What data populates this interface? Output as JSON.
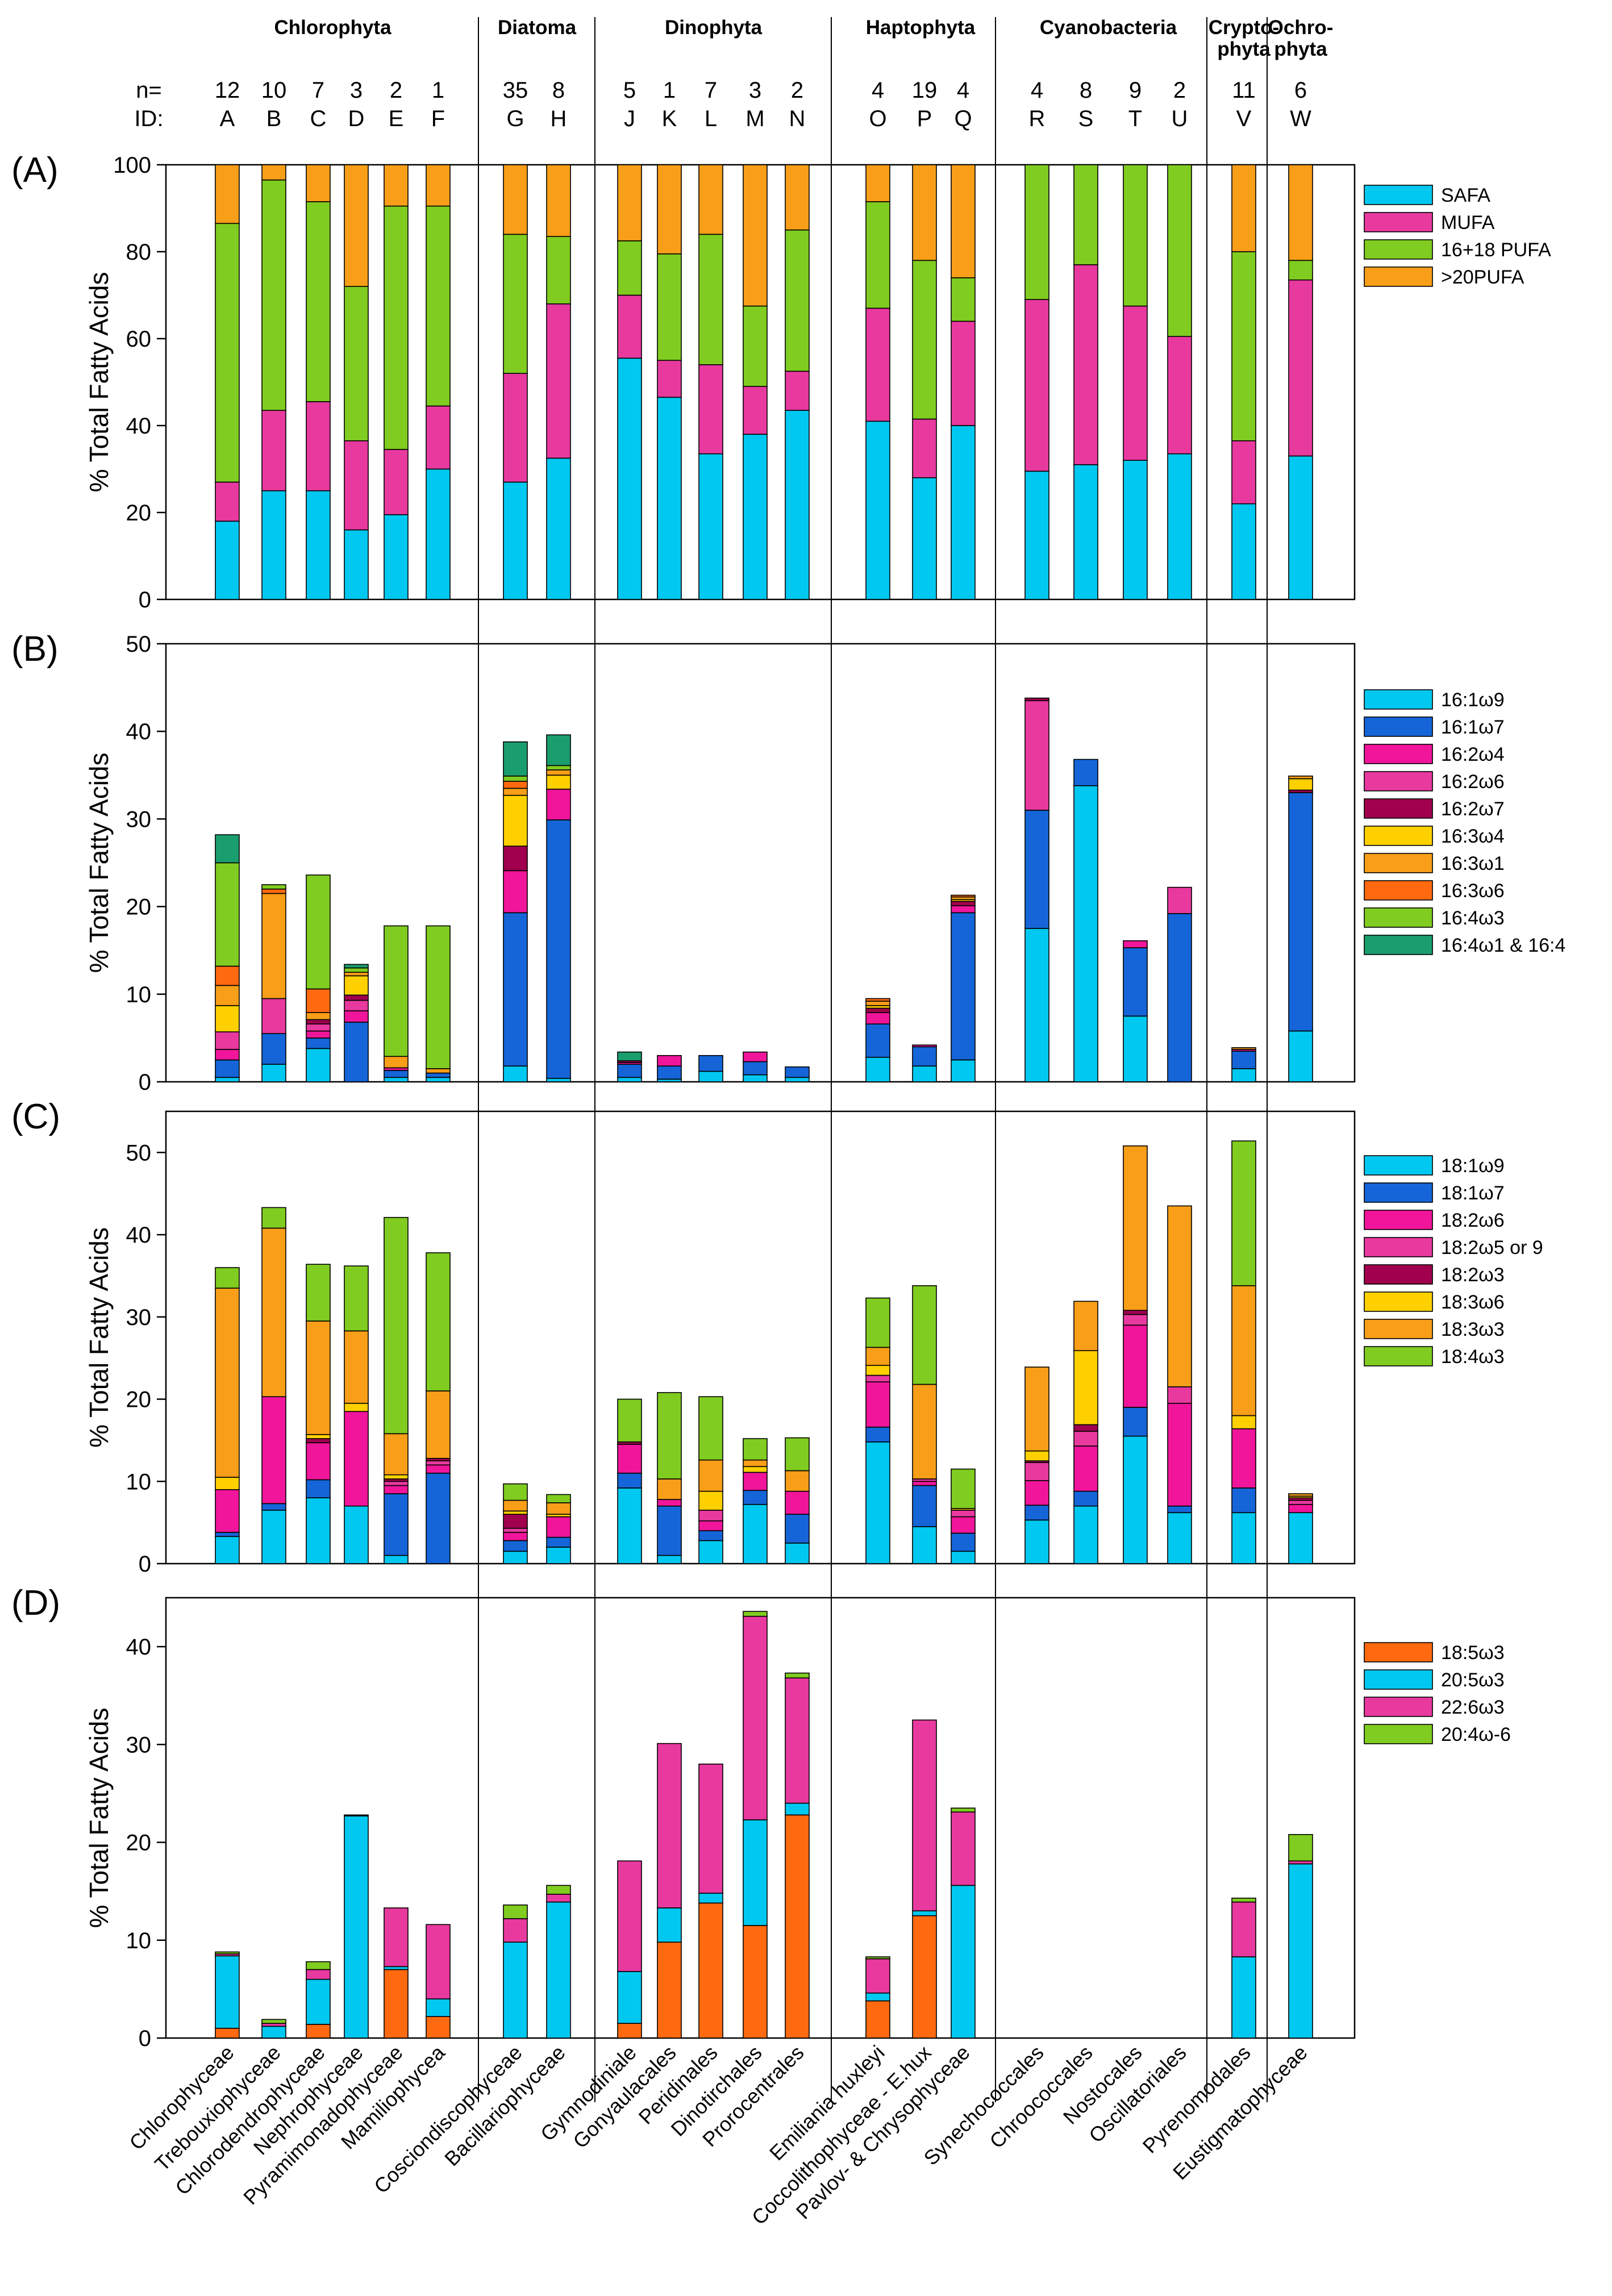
{
  "groups": [
    {
      "name": "Chlorophyta",
      "start": 0,
      "end": 5
    },
    {
      "name": "Diatoma",
      "start": 6,
      "end": 7
    },
    {
      "name": "Dinophyta",
      "start": 8,
      "end": 12
    },
    {
      "name": "Haptophyta",
      "start": 13,
      "end": 15
    },
    {
      "name": "Cyanobacteria",
      "start": 16,
      "end": 19
    },
    {
      "name": "Crypto-\nphyta",
      "start": 20,
      "end": 20
    },
    {
      "name": "Ochro-\nphyta",
      "start": 21,
      "end": 21
    }
  ],
  "n_label": "n=",
  "id_label": "ID:",
  "categories": [
    {
      "n": "12",
      "id": "A",
      "name": "Chlorophyceae"
    },
    {
      "n": "10",
      "id": "B",
      "name": "Trebouxiophyceae"
    },
    {
      "n": "7",
      "id": "C",
      "name": "Chlorodendrophyceae"
    },
    {
      "n": "3",
      "id": "D",
      "name": "Nephrophyceae"
    },
    {
      "n": "2",
      "id": "E",
      "name": "Pyramimonadophyceae"
    },
    {
      "n": "1",
      "id": "F",
      "name": "Mamiliophycea"
    },
    {
      "n": "35",
      "id": "G",
      "name": "Cosciondiscophyceae"
    },
    {
      "n": "8",
      "id": "H",
      "name": "Bacillariophyceae"
    },
    {
      "n": "5",
      "id": "J",
      "name": "Gymnodiniale"
    },
    {
      "n": "1",
      "id": "K",
      "name": "Gonyaulacales"
    },
    {
      "n": "7",
      "id": "L",
      "name": "Peridinales"
    },
    {
      "n": "3",
      "id": "M",
      "name": "Dinotirchales"
    },
    {
      "n": "2",
      "id": "N",
      "name": "Prorocentrales"
    },
    {
      "n": "4",
      "id": "O",
      "name": "Emiliania huxleyi"
    },
    {
      "n": "19",
      "id": "P",
      "name": "Coccolithophyceae - E.hux"
    },
    {
      "n": "4",
      "id": "Q",
      "name": "Pavlov- & Chrysophyceae"
    },
    {
      "n": "4",
      "id": "R",
      "name": "Synechococcales"
    },
    {
      "n": "8",
      "id": "S",
      "name": "Chroococcales"
    },
    {
      "n": "9",
      "id": "T",
      "name": "Nostocales"
    },
    {
      "n": "2",
      "id": "U",
      "name": "Oscillatoriales"
    },
    {
      "n": "11",
      "id": "V",
      "name": "Pyrenomodales"
    },
    {
      "n": "6",
      "id": "W",
      "name": "Eustigmatophyceae"
    }
  ],
  "chart_data": [
    {
      "type": "bar",
      "panel": "(A)",
      "ylabel": "% Total Fatty Acids",
      "ylim": [
        0,
        100
      ],
      "yticks": [
        0,
        20,
        40,
        60,
        80,
        100
      ],
      "series": [
        {
          "name": "SAFA",
          "color": "#00c8f0",
          "values": [
            18,
            25,
            25,
            16,
            19.5,
            30,
            27,
            32.5,
            55.5,
            46.5,
            33.5,
            38,
            43.5,
            41,
            28,
            40,
            29.5,
            31,
            32,
            33.5,
            22,
            33
          ]
        },
        {
          "name": "MUFA",
          "color": "#e8399f",
          "values": [
            9,
            18.5,
            20.5,
            20.5,
            15,
            14.5,
            25,
            35.5,
            14.5,
            8.5,
            20.5,
            11,
            9,
            26,
            13.5,
            24,
            39.5,
            46,
            35.5,
            27,
            14.5,
            40.5
          ]
        },
        {
          "name": "16+18 PUFA",
          "color": "#80cc20",
          "values": [
            59.5,
            53,
            46,
            35.5,
            56,
            46,
            32,
            15.5,
            12.5,
            24.5,
            30,
            18.5,
            32.5,
            24.5,
            36.5,
            10,
            31,
            23,
            32.5,
            39.5,
            43.5,
            4.5
          ]
        },
        {
          "name": ">20PUFA",
          "color": "#f89e18",
          "values": [
            13.5,
            3.5,
            8.5,
            28,
            9.5,
            9.5,
            16,
            16.5,
            17.5,
            20.5,
            16,
            32.5,
            15,
            8.5,
            22,
            26,
            0,
            0,
            0,
            0,
            20,
            22
          ]
        }
      ]
    },
    {
      "type": "bar",
      "panel": "(B)",
      "ylabel": "% Total Fatty Acids",
      "ylim": [
        0,
        50
      ],
      "yticks": [
        0,
        10,
        20,
        30,
        40,
        50
      ],
      "series": [
        {
          "name": "16:1ω9",
          "color": "#00c8f0",
          "values": [
            0.5,
            2,
            3.8,
            0,
            0.5,
            0.5,
            1.8,
            0.4,
            0.5,
            0.3,
            1.2,
            0.8,
            0.5,
            2.8,
            1.8,
            2.5,
            17.5,
            33.8,
            7.5,
            0,
            1.5,
            5.8
          ]
        },
        {
          "name": "16:1ω7",
          "color": "#1565d8",
          "values": [
            2,
            3.5,
            1.2,
            6.8,
            0.8,
            0.5,
            17.5,
            29.5,
            1.5,
            1.5,
            1.8,
            1.5,
            1.2,
            3.8,
            2.2,
            16.8,
            13.5,
            3,
            7.8,
            19.2,
            2,
            27.2
          ]
        },
        {
          "name": "16:2ω4",
          "color": "#f0159a",
          "values": [
            1.2,
            0,
            0.8,
            1.3,
            0.3,
            0,
            4.8,
            3.5,
            0.2,
            1.2,
            0,
            1.1,
            0,
            1.3,
            0.2,
            0.8,
            0,
            0,
            0.8,
            0,
            0.2,
            0
          ]
        },
        {
          "name": "16:2ω6",
          "color": "#e8399f",
          "values": [
            2,
            4,
            0.8,
            1.2,
            0,
            0,
            0,
            0,
            0,
            0,
            0,
            0,
            0,
            0,
            0,
            0,
            12.5,
            0,
            0,
            3,
            0,
            0
          ]
        },
        {
          "name": "16:2ω7",
          "color": "#a0004e",
          "values": [
            0,
            0,
            0.5,
            0.6,
            0,
            0,
            2.8,
            0,
            0.2,
            0,
            0,
            0,
            0,
            0.5,
            0,
            0.5,
            0.3,
            0,
            0,
            0,
            0,
            0.3
          ]
        },
        {
          "name": "16:3ω4",
          "color": "#ffd000",
          "values": [
            3,
            0,
            0,
            2.2,
            0,
            0,
            5.8,
            1.6,
            0,
            0,
            0,
            0,
            0,
            0.3,
            0,
            0.2,
            0,
            0,
            0,
            0,
            0,
            1.3
          ]
        },
        {
          "name": "16:3ω1",
          "color": "#f89e18",
          "values": [
            2.3,
            12,
            0.8,
            0.4,
            1.3,
            0.5,
            0.8,
            0.6,
            0,
            0,
            0,
            0,
            0,
            0.5,
            0,
            0.3,
            0,
            0,
            0,
            0,
            0.2,
            0.3
          ]
        },
        {
          "name": "16:3ω6",
          "color": "#ff6a10",
          "values": [
            2.2,
            0.5,
            2.7,
            0,
            0,
            0,
            0.8,
            0,
            0,
            0,
            0,
            0,
            0,
            0.3,
            0,
            0.2,
            0,
            0,
            0,
            0,
            0,
            0
          ]
        },
        {
          "name": "16:4ω3",
          "color": "#80cc20",
          "values": [
            11.8,
            0.5,
            13,
            0.5,
            14.9,
            16.3,
            0.6,
            0.5,
            0,
            0,
            0,
            0,
            0,
            0,
            0,
            0,
            0,
            0,
            0,
            0,
            0,
            0
          ]
        },
        {
          "name": "16:4ω1 & 16:4",
          "color": "#1a9e6e",
          "values": [
            3.2,
            0,
            0,
            0.4,
            0,
            0,
            3.9,
            3.5,
            1,
            0,
            0,
            0,
            0,
            0,
            0,
            0,
            0,
            0,
            0,
            0,
            0,
            0
          ]
        }
      ]
    },
    {
      "type": "bar",
      "panel": "(C)",
      "ylabel": "% Total Fatty Acids",
      "ylim": [
        0,
        55
      ],
      "yticks": [
        0,
        10,
        20,
        30,
        40,
        50
      ],
      "series": [
        {
          "name": "18:1ω9",
          "color": "#00c8f0",
          "values": [
            3.3,
            6.5,
            8,
            7,
            1,
            0,
            1.5,
            2,
            9.2,
            1,
            2.8,
            7.2,
            2.5,
            14.8,
            4.5,
            1.5,
            5.3,
            7,
            15.5,
            6.2,
            6.2,
            6.2
          ]
        },
        {
          "name": "18:1ω7",
          "color": "#1565d8",
          "values": [
            0.5,
            0.8,
            2.2,
            0,
            7.5,
            11,
            1.3,
            1.2,
            1.8,
            6,
            1.2,
            1.7,
            3.5,
            1.8,
            5,
            2.2,
            1.8,
            1.8,
            3.5,
            0.8,
            3,
            0
          ]
        },
        {
          "name": "18:2ω6",
          "color": "#f0159a",
          "values": [
            5.2,
            13,
            4.5,
            11.5,
            1,
            1,
            1,
            2.5,
            3.5,
            0.8,
            1.2,
            2.2,
            2.8,
            5.5,
            0.5,
            2,
            3,
            5.5,
            10,
            12.5,
            7.2,
            1
          ]
        },
        {
          "name": "18:2ω5 or 9",
          "color": "#e8399f",
          "values": [
            0,
            0,
            0,
            0,
            0.5,
            0.5,
            0.5,
            0,
            0,
            0,
            1.3,
            0,
            0,
            0.8,
            0.3,
            0.8,
            2.2,
            1.8,
            1.3,
            2,
            0,
            0.5
          ]
        },
        {
          "name": "18:2ω3",
          "color": "#a0004e",
          "values": [
            0,
            0,
            0.5,
            0,
            0.3,
            0.3,
            1.7,
            0,
            0.3,
            0,
            0,
            0,
            0,
            0,
            0,
            0,
            0.2,
            0.8,
            0.5,
            0,
            0,
            0.3
          ]
        },
        {
          "name": "18:3ω6",
          "color": "#ffd000",
          "values": [
            1.5,
            0,
            0.5,
            1,
            0.5,
            0,
            0.4,
            0.3,
            0,
            0,
            2.3,
            0.7,
            0,
            1.2,
            0,
            0.2,
            1.2,
            9,
            0,
            0,
            1.6,
            0.2
          ]
        },
        {
          "name": "18:3ω3",
          "color": "#f89e18",
          "values": [
            23,
            20.5,
            13.8,
            8.8,
            5,
            8.2,
            1.3,
            1.4,
            0,
            2.5,
            3.8,
            0.8,
            2.5,
            2.2,
            11.5,
            0,
            10.2,
            6,
            20,
            22,
            15.8,
            0.3
          ]
        },
        {
          "name": "18:4ω3",
          "color": "#80cc20",
          "values": [
            2.5,
            2.5,
            6.9,
            7.9,
            26.3,
            16.8,
            2,
            1,
            5.2,
            10.5,
            7.7,
            2.6,
            4,
            6,
            12,
            4.8,
            0,
            0,
            0,
            0,
            17.6,
            0
          ]
        }
      ]
    },
    {
      "type": "bar",
      "panel": "(D)",
      "ylabel": "% Total Fatty Acids",
      "ylim": [
        0,
        45
      ],
      "yticks": [
        0,
        10,
        20,
        30,
        40
      ],
      "series": [
        {
          "name": "18:5ω3",
          "color": "#ff6a10",
          "values": [
            1,
            0,
            1.4,
            0,
            7,
            2.2,
            0,
            0,
            1.5,
            9.8,
            13.8,
            11.5,
            22.8,
            3.8,
            12.5,
            0,
            0,
            0,
            0,
            0,
            0,
            0
          ]
        },
        {
          "name": "20:5ω3",
          "color": "#00c8f0",
          "values": [
            7.4,
            1.2,
            4.6,
            22.7,
            0.3,
            1.8,
            9.8,
            13.9,
            5.3,
            3.5,
            1,
            10.8,
            1.2,
            0.8,
            0.5,
            15.6,
            0,
            0,
            0,
            0,
            8.3,
            17.8
          ]
        },
        {
          "name": "22:6ω3",
          "color": "#e8399f",
          "values": [
            0.2,
            0.3,
            1,
            0,
            6,
            7.6,
            2.4,
            0.8,
            11.3,
            16.8,
            13.2,
            20.8,
            12.8,
            3.5,
            19.5,
            7.5,
            0,
            0,
            0,
            0,
            5.6,
            0.3
          ]
        },
        {
          "name": "20:4ω-6",
          "color": "#80cc20",
          "values": [
            0.2,
            0.4,
            0.8,
            0.1,
            0,
            0,
            1.4,
            0.9,
            0,
            0,
            0,
            0.5,
            0.5,
            0.2,
            0,
            0.4,
            0,
            0,
            0,
            0,
            0.4,
            2.7
          ]
        }
      ]
    }
  ]
}
